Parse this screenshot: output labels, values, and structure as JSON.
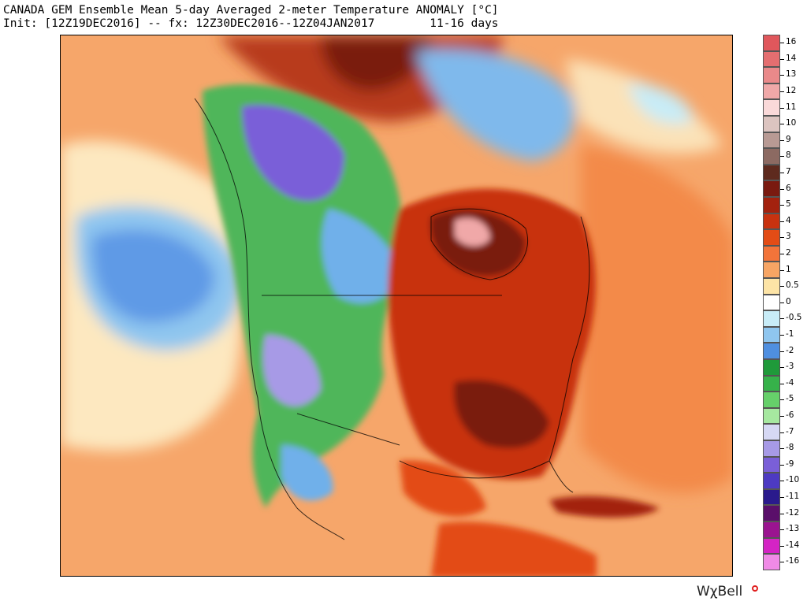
{
  "header": {
    "title": "CANADA GEM Ensemble Mean 5-day Averaged 2-meter Temperature ANOMALY [°C]",
    "init_line": "Init: [12Z19DEC2016] -- fx: 12Z30DEC2016--12Z04JAN2017        11-16 days"
  },
  "map": {
    "region": "North America",
    "variable": "2-meter temperature anomaly",
    "pattern": {
      "warm_core": "eastern US and eastern Canada (Hudson Bay)",
      "cold_core": "western Canada, Alaska, Rocky Mountain west",
      "ocean_cold_pool": "northeast Pacific"
    }
  },
  "legend": {
    "items": [
      {
        "label": "16",
        "color": "#e0575c"
      },
      {
        "label": "14",
        "color": "#e46e70"
      },
      {
        "label": "13",
        "color": "#ea898a"
      },
      {
        "label": "12",
        "color": "#f0a8a8"
      },
      {
        "label": "11",
        "color": "#fad9d9"
      },
      {
        "label": "10",
        "color": "#dcc4c0"
      },
      {
        "label": "9",
        "color": "#b89a94"
      },
      {
        "label": "8",
        "color": "#8c6a62"
      },
      {
        "label": "7",
        "color": "#5e2a1e"
      },
      {
        "label": "6",
        "color": "#7a1a10"
      },
      {
        "label": "5",
        "color": "#a3220e"
      },
      {
        "label": "4",
        "color": "#c8320f"
      },
      {
        "label": "3",
        "color": "#e34c16"
      },
      {
        "label": "2",
        "color": "#f2743a"
      },
      {
        "label": "1",
        "color": "#f7a564"
      },
      {
        "label": "0.5",
        "color": "#fde4a6"
      },
      {
        "label": "0",
        "color": "#ffffff"
      },
      {
        "label": "-0.5",
        "color": "#c8ecf7"
      },
      {
        "label": "-1",
        "color": "#8fc6ef"
      },
      {
        "label": "-2",
        "color": "#4f8fe0"
      },
      {
        "label": "-3",
        "color": "#1f9a3a"
      },
      {
        "label": "-4",
        "color": "#36b24a"
      },
      {
        "label": "-5",
        "color": "#66d06a"
      },
      {
        "label": "-6",
        "color": "#a6e8a0"
      },
      {
        "label": "-7",
        "color": "#d6d8f4"
      },
      {
        "label": "-8",
        "color": "#a79ae6"
      },
      {
        "label": "-9",
        "color": "#7a5fd8"
      },
      {
        "label": "-10",
        "color": "#4d3ac2"
      },
      {
        "label": "-11",
        "color": "#2a1a8c"
      },
      {
        "label": "-12",
        "color": "#5a0f6a"
      },
      {
        "label": "-13",
        "color": "#9a1490"
      },
      {
        "label": "-14",
        "color": "#d424c4"
      },
      {
        "label": "-16",
        "color": "#f08ae6"
      }
    ]
  },
  "brand": {
    "text": "WχBell",
    "accent": "#e02020"
  }
}
